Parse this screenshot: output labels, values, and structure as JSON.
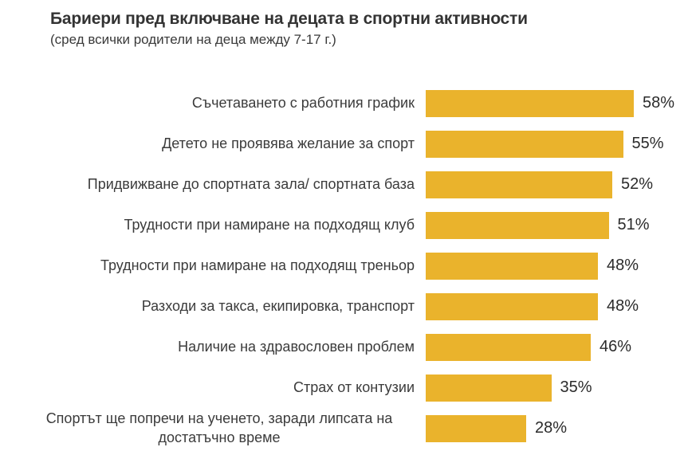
{
  "chart_data": {
    "type": "bar",
    "orientation": "horizontal",
    "title": "Бариери пред включване на децата в спортни активности",
    "subtitle": "(сред всички родители на деца между 7-17 г.)",
    "categories": [
      "Съчетаването с работния график",
      "Детето не проявява желание за спорт",
      "Придвижване до спортната зала/ спортната база",
      "Трудности при намиране на подходящ клуб",
      "Трудности при намиране на подходящ треньор",
      "Разходи за такса, екипировка, транспорт",
      "Наличие на здравословен проблем",
      "Страх от контузии",
      "Спортът ще попречи на ученето, заради липсата на достатъчно време"
    ],
    "values": [
      58,
      55,
      52,
      51,
      48,
      48,
      46,
      35,
      28
    ],
    "value_suffix": "%",
    "xlim": [
      0,
      62
    ],
    "grid": false,
    "legend": false,
    "data_labels": "outside-end",
    "bar_color": "#EAB32C",
    "title_color": "#333333",
    "label_color": "#3b3b3b",
    "background": "#ffffff"
  }
}
